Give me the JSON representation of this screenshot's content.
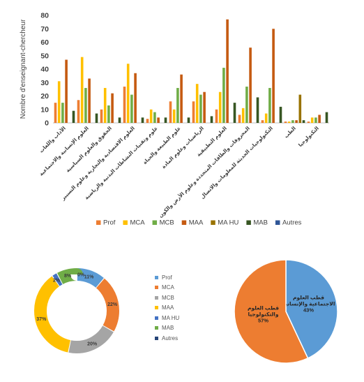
{
  "chart_data": [
    {
      "type": "bar",
      "ylabel": "Nombre d'enseignant-chercheur",
      "ylim": [
        0,
        80
      ],
      "yticks": [
        0,
        10,
        20,
        30,
        40,
        50,
        60,
        70,
        80
      ],
      "grid": false,
      "legend_position": "bottom",
      "categories": [
        "الآداب واللغات",
        "العلوم الإنسانية والاجتماعية",
        "الحقوق والعلوم السياسية",
        "العلوم الاقتصادية والتجارية وعلوم التسيير",
        "علوم وتقنيات النشاطات البدنية والرياضية",
        "علوم الطبيعة والحياة",
        "الرياضيات وعلوم المادة",
        "العلوم التطبيقية",
        "المحروقات والطاقات المتجددة وعلوم الأرض والكون",
        "التكنولوجيات الحديثة للمعلومات والاتصال",
        "الطب",
        "التكنولوجيا"
      ],
      "series": [
        {
          "name": "Prof",
          "color": "#ED7D31",
          "values": [
            15,
            17,
            10,
            27,
            3,
            16,
            16,
            10,
            6,
            2,
            1,
            1
          ]
        },
        {
          "name": "MCA",
          "color": "#FFC000",
          "values": [
            31,
            49,
            26,
            44,
            10,
            10,
            29,
            23,
            11,
            7,
            1,
            4
          ]
        },
        {
          "name": "MCB",
          "color": "#70AD47",
          "values": [
            15,
            26,
            13,
            21,
            8,
            26,
            21,
            41,
            27,
            26,
            2,
            4
          ]
        },
        {
          "name": "MAA",
          "color": "#C55A11",
          "values": [
            47,
            33,
            22,
            37,
            4,
            36,
            23,
            77,
            56,
            70,
            2,
            6
          ]
        },
        {
          "name": "MA HU",
          "color": "#997300",
          "values": [
            0,
            0,
            0,
            0,
            0,
            0,
            0,
            0,
            0,
            0,
            21,
            0
          ]
        },
        {
          "name": "MAB",
          "color": "#375623",
          "values": [
            9,
            7,
            4,
            4,
            4,
            4,
            5,
            15,
            19,
            12,
            2,
            8
          ]
        },
        {
          "name": "Autres",
          "color": "#2F5597",
          "values": [
            0,
            0,
            0,
            0,
            0,
            0,
            0,
            0,
            0,
            0,
            0,
            0
          ]
        }
      ]
    },
    {
      "type": "pie",
      "variant": "donut",
      "legend_position": "right",
      "slices": [
        {
          "name": "Prof",
          "value": 11,
          "label": "11%",
          "color": "#5B9BD5"
        },
        {
          "name": "MCA",
          "value": 22,
          "label": "22%",
          "color": "#ED7D31"
        },
        {
          "name": "MCB",
          "value": 20,
          "label": "20%",
          "color": "#A5A5A5"
        },
        {
          "name": "MAA",
          "value": 37,
          "label": "37%",
          "color": "#FFC000"
        },
        {
          "name": "MA HU",
          "value": 2,
          "label": "2%",
          "color": "#4472C4"
        },
        {
          "name": "MAB",
          "value": 8,
          "label": "8%",
          "color": "#70AD47"
        },
        {
          "name": "Autres",
          "value": 0,
          "label": "0%",
          "color": "#264478"
        }
      ]
    },
    {
      "type": "pie",
      "slices": [
        {
          "name": "قطب العلوم الاجتماعية والإنسانية",
          "value": 43,
          "label": "43%",
          "color": "#5B9BD5"
        },
        {
          "name": "قطب العلوم والتكنولوجيا",
          "value": 57,
          "label": "57%",
          "color": "#ED7D31"
        }
      ]
    }
  ]
}
